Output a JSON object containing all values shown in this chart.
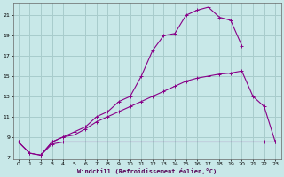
{
  "xlabel": "Windchill (Refroidissement éolien,°C)",
  "bg_color": "#c8e8e8",
  "grid_color": "#a8cccc",
  "line_color": "#880088",
  "xlim": [
    -0.5,
    23.5
  ],
  "ylim": [
    6.8,
    22.2
  ],
  "xticks": [
    0,
    1,
    2,
    3,
    4,
    5,
    6,
    7,
    8,
    9,
    10,
    11,
    12,
    13,
    14,
    15,
    16,
    17,
    18,
    19,
    20,
    21,
    22,
    23
  ],
  "yticks": [
    7,
    9,
    11,
    13,
    15,
    17,
    19,
    21
  ],
  "line1_x": [
    0,
    1,
    2,
    3,
    4,
    5,
    6,
    7,
    8,
    9,
    10,
    11,
    12,
    13,
    14,
    15,
    16,
    17,
    18,
    19,
    20
  ],
  "line1_y": [
    8.5,
    7.4,
    7.2,
    8.5,
    9.0,
    9.5,
    10.0,
    11.0,
    11.5,
    12.5,
    13.0,
    15.0,
    17.5,
    19.0,
    19.2,
    21.0,
    21.5,
    21.8,
    20.8,
    20.5,
    18.0
  ],
  "line2_x": [
    2,
    3,
    4,
    5,
    6,
    7,
    8,
    9,
    10,
    11,
    12,
    13,
    14,
    15,
    16,
    17,
    18,
    19,
    20,
    21,
    22,
    23
  ],
  "line2_y": [
    7.2,
    8.5,
    9.0,
    9.2,
    9.8,
    10.5,
    11.0,
    11.5,
    12.0,
    12.5,
    13.0,
    13.5,
    14.0,
    14.5,
    14.8,
    15.0,
    15.2,
    15.3,
    15.5,
    13.0,
    12.0,
    8.5
  ],
  "line3_x": [
    0,
    1,
    2,
    3,
    4,
    22,
    23
  ],
  "line3_y": [
    8.5,
    7.4,
    7.2,
    8.3,
    8.5,
    8.5,
    8.5
  ]
}
